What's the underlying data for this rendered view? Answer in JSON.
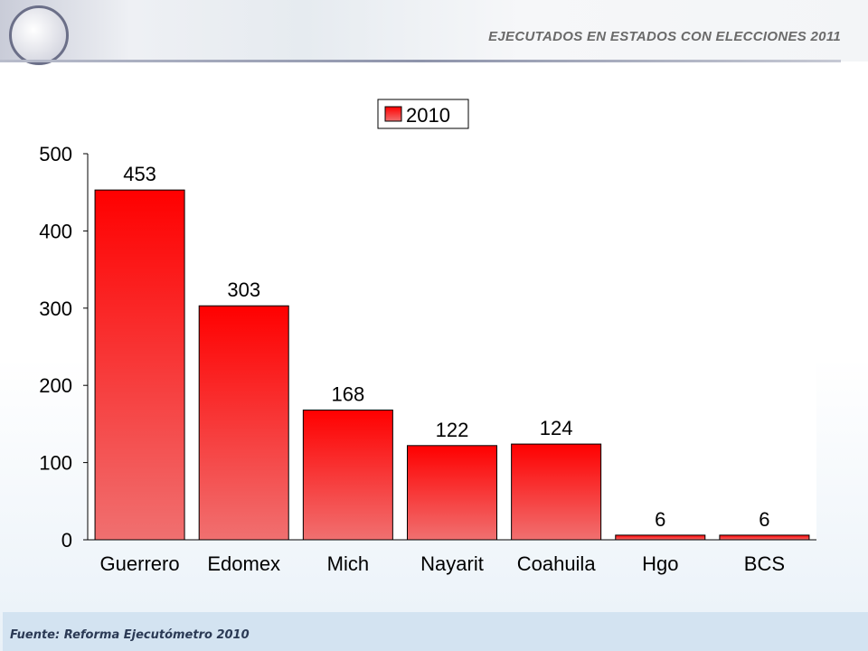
{
  "header": {
    "title": "EJECUTADOS EN ESTADOS CON ELECCIONES 2011"
  },
  "footer": {
    "source": "Fuente: Reforma Ejecutómetro 2010"
  },
  "chart_data": {
    "type": "bar",
    "title": "",
    "categories": [
      "Guerrero",
      "Edomex",
      "Mich",
      "Nayarit",
      "Coahuila",
      "Hgo",
      "BCS"
    ],
    "series": [
      {
        "name": "2010",
        "values": [
          453,
          303,
          168,
          122,
          124,
          6,
          6
        ],
        "color": "#ff1a1a"
      }
    ],
    "ylim": [
      0,
      500
    ],
    "yticks": [
      0,
      100,
      200,
      300,
      400,
      500
    ],
    "xlabel": "",
    "ylabel": "",
    "legend": "top-center",
    "grid": false
  }
}
